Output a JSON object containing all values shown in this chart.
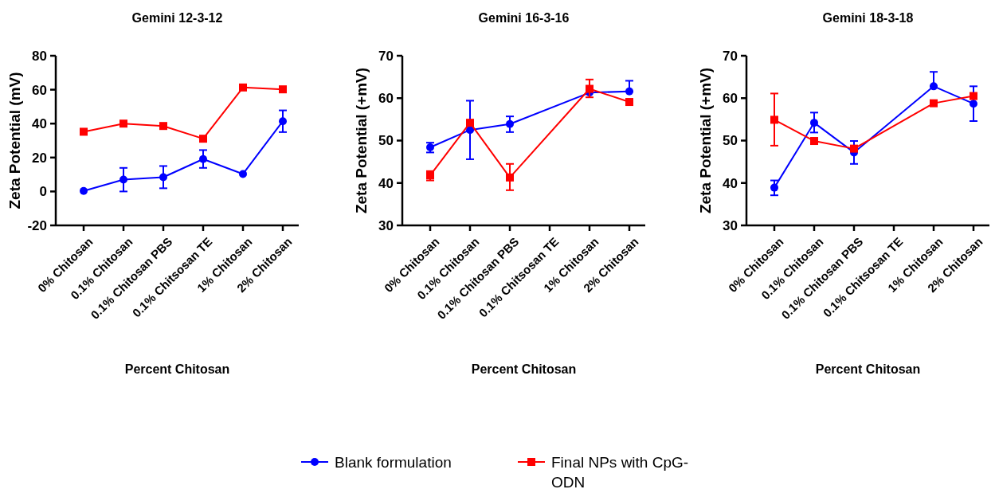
{
  "chart_data": [
    {
      "type": "line",
      "title": "Gemini 12-3-12",
      "xlabel": "Percent Chitosan",
      "ylabel": "Zeta Potential (mV)",
      "categories": [
        "0% Chitosan",
        "0.1% Chitosan",
        "0.1% Chitosan PBS",
        "0.1% Chitsosan TE",
        "1% Chitosan",
        "2% Chitosan"
      ],
      "ylim": [
        -20,
        80
      ],
      "yticks": [
        -20,
        0,
        20,
        40,
        60,
        80
      ],
      "legend": "bottom",
      "series": [
        {
          "name": "Blank formulation",
          "color": "#0000ff",
          "marker": "circle",
          "values": [
            0.3,
            7.0,
            8.4,
            19.1,
            10.3,
            41.4
          ],
          "errors": [
            null,
            [
              0,
              13.9
            ],
            [
              1.9,
              15
            ],
            [
              13.9,
              24.4
            ],
            null,
            [
              35,
              47.8
            ]
          ]
        },
        {
          "name": "Final NPs with CpG-ODN",
          "color": "#ff0000",
          "marker": "square",
          "values": [
            35.2,
            40,
            38.6,
            31.1,
            61.3,
            60.2
          ]
        }
      ]
    },
    {
      "type": "line",
      "title": "Gemini 16-3-16",
      "xlabel": "Percent Chitosan",
      "ylabel": "Zeta Potential (+mV)",
      "categories": [
        "0% Chitosan",
        "0.1% Chitosan",
        "0.1% Chitosan PBS",
        "0.1% Chitsosan TE",
        "1% Chitosan",
        "2% Chitosan"
      ],
      "ylim": [
        30,
        70
      ],
      "yticks": [
        30,
        40,
        50,
        60,
        70
      ],
      "series": [
        {
          "color": "#0000ff",
          "marker": "circle",
          "values": [
            48.4,
            52.5,
            53.9,
            null,
            61.3,
            61.6
          ],
          "errors": [
            [
              47.2,
              49.5
            ],
            [
              45.6,
              59.4
            ],
            [
              52,
              55.7
            ],
            null,
            null,
            [
              61.6,
              64.1
            ]
          ]
        },
        {
          "color": "#ff0000",
          "marker": "square",
          "values": [
            41.8,
            54.2,
            41.3,
            null,
            62.2,
            59.1
          ],
          "errors": [
            [
              40.6,
              42.8
            ],
            null,
            [
              38.3,
              44.5
            ],
            null,
            [
              60.2,
              64.4
            ],
            [
              58.4,
              59.7
            ]
          ]
        }
      ]
    },
    {
      "type": "line",
      "title": "Gemini 18-3-18",
      "xlabel": "Percent Chitosan",
      "ylabel": "Zeta Potential (+mV)",
      "categories": [
        "0% Chitosan",
        "0.1% Chitosan",
        "0.1% Chitosan PBS",
        "0.1% Chitsosan TE",
        "1% Chitosan",
        "2% Chitosan"
      ],
      "ylim": [
        30,
        70
      ],
      "yticks": [
        30,
        40,
        50,
        60,
        70
      ],
      "series": [
        {
          "color": "#0000ff",
          "marker": "circle",
          "values": [
            38.9,
            54.2,
            47.2,
            null,
            62.8,
            58.7
          ],
          "errors": [
            [
              37.1,
              40.6
            ],
            [
              51.9,
              56.6
            ],
            [
              44.5,
              49.9
            ],
            null,
            [
              62.8,
              66.2
            ],
            [
              54.6,
              62.8
            ]
          ]
        },
        {
          "color": "#ff0000",
          "marker": "square",
          "values": [
            54.9,
            49.9,
            48.1,
            null,
            58.8,
            60.5
          ],
          "errors": [
            [
              48.8,
              61.1
            ],
            null,
            null,
            null,
            [
              58.3,
              59.2
            ],
            [
              60,
              61
            ]
          ]
        }
      ]
    }
  ]
}
